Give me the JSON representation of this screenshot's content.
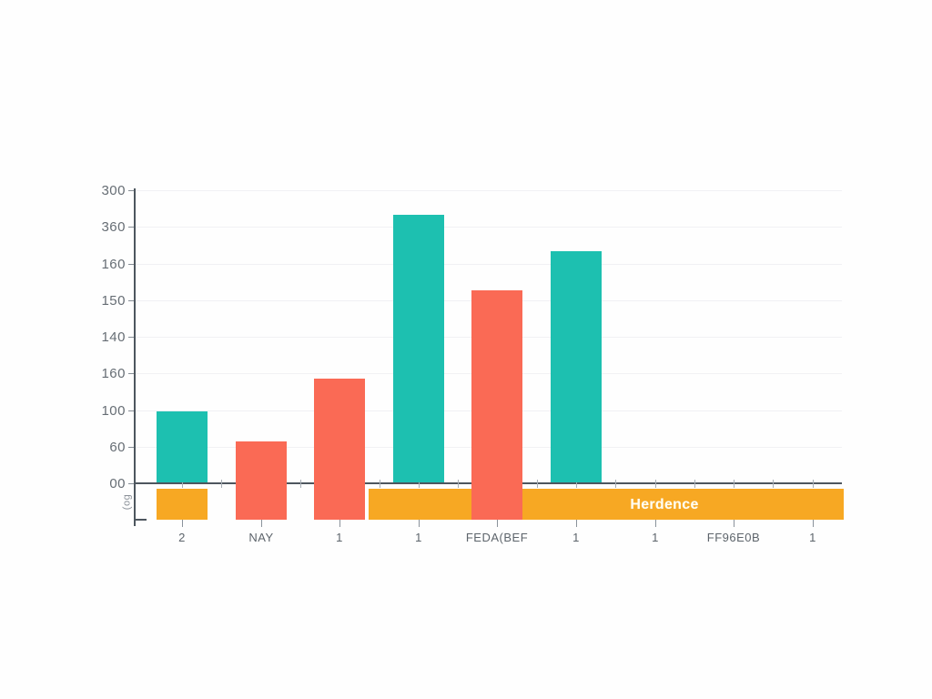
{
  "chart_data": {
    "type": "bar",
    "title": "",
    "y_axis": {
      "tick_labels": [
        "300",
        "360",
        "160",
        "150",
        "140",
        "160",
        "100",
        "60",
        "00"
      ],
      "rotated_unit_label": "(og",
      "ylim": [
        0,
        320
      ],
      "units_per_tick": 40,
      "grid": "on"
    },
    "x_axis": {
      "tick_labels": [
        "2",
        "NAY",
        "1",
        "1",
        "FEDA(BEF",
        "1",
        "1",
        "FF96E0B",
        "1"
      ]
    },
    "bars": [
      {
        "x_index": 0,
        "series": "teal",
        "value": 78,
        "extends_below_axis": false
      },
      {
        "x_index": 1,
        "series": "coral",
        "value": 45,
        "extends_below_axis": true
      },
      {
        "x_index": 2,
        "series": "coral",
        "value": 113,
        "extends_below_axis": true
      },
      {
        "x_index": 3,
        "series": "teal",
        "value": 292,
        "extends_below_axis": false
      },
      {
        "x_index": 4,
        "series": "coral",
        "value": 210,
        "extends_below_axis": false
      },
      {
        "x_index": 5,
        "series": "teal",
        "value": 252,
        "extends_below_axis": false
      }
    ],
    "band": {
      "label": "Herdence",
      "segments": [
        "under-first-bar",
        "main-wide-segment"
      ]
    },
    "colors": {
      "teal": "#1dc0b0",
      "coral": "#fa6a55",
      "orange": "#f7a823",
      "axis": "#4d565e",
      "grid": "#f1f1f4",
      "y_label_text": "#666d74",
      "x_label_text": "#5d646b",
      "band_text": "#fffdf2"
    },
    "legend": "none"
  }
}
